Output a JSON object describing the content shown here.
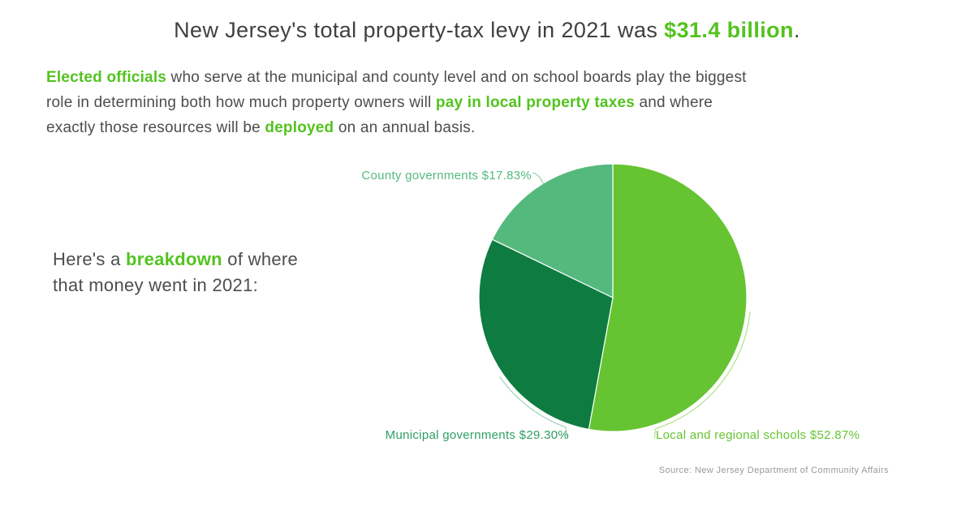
{
  "colors": {
    "highlight": "#53c31f",
    "text_dark": "#404040",
    "text_body": "#4d4d4d",
    "source_gray": "#999999"
  },
  "header": {
    "title_segments": [
      {
        "t": "New Jersey's total property-tax levy in 2021 was ",
        "hl": false
      },
      {
        "t": "$31.4 billion",
        "hl": true
      },
      {
        "t": ".",
        "hl": false
      }
    ]
  },
  "intro": {
    "lines": [
      [
        {
          "t": "Elected officials",
          "hl": true
        },
        {
          "t": " who serve at the municipal and county level and on school boards play the biggest",
          "hl": false
        }
      ],
      [
        {
          "t": "role in determining both how much property owners will ",
          "hl": false
        },
        {
          "t": "pay in local property taxes",
          "hl": true
        },
        {
          "t": " and where",
          "hl": false
        }
      ],
      [
        {
          "t": "exactly those resources will be ",
          "hl": false
        },
        {
          "t": "deployed",
          "hl": true
        },
        {
          "t": " on an annual basis.",
          "hl": false
        }
      ]
    ]
  },
  "breakdown_note": {
    "lines": [
      [
        {
          "t": "Here's a ",
          "hl": false
        },
        {
          "t": "breakdown",
          "hl": true
        },
        {
          "t": " of where",
          "hl": false
        }
      ],
      [
        {
          "t": "that money went in 2021:",
          "hl": false
        }
      ]
    ]
  },
  "chart_data": {
    "type": "pie",
    "total_levy": "$31.4 billion",
    "year": "2021",
    "start_angle_deg": 0,
    "direction": "clockwise",
    "slices": [
      {
        "name": "Local and regional schools",
        "value_pct": 52.87,
        "label": "Local and regional schools $52.87%",
        "color": "#66c432",
        "label_color": "#66c432"
      },
      {
        "name": "Municipal governments",
        "value_pct": 29.3,
        "label": "Municipal governments $29.30%",
        "color": "#0e7c40",
        "label_color": "#2f9e62"
      },
      {
        "name": "County governments",
        "value_pct": 17.83,
        "label": "County governments $17.83%",
        "color": "#54b97d",
        "label_color": "#54b97d"
      }
    ],
    "source": "Source: New Jersey Department of Community Affairs"
  }
}
